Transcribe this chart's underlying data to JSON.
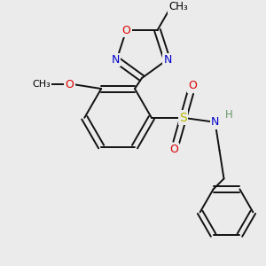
{
  "background_color": "#ebebeb",
  "atom_colors": {
    "C": "#000000",
    "N": "#0000cc",
    "O": "#dd0000",
    "S": "#b8b800",
    "H": "#669966"
  },
  "bond_color": "#111111",
  "bond_width": 1.4
}
